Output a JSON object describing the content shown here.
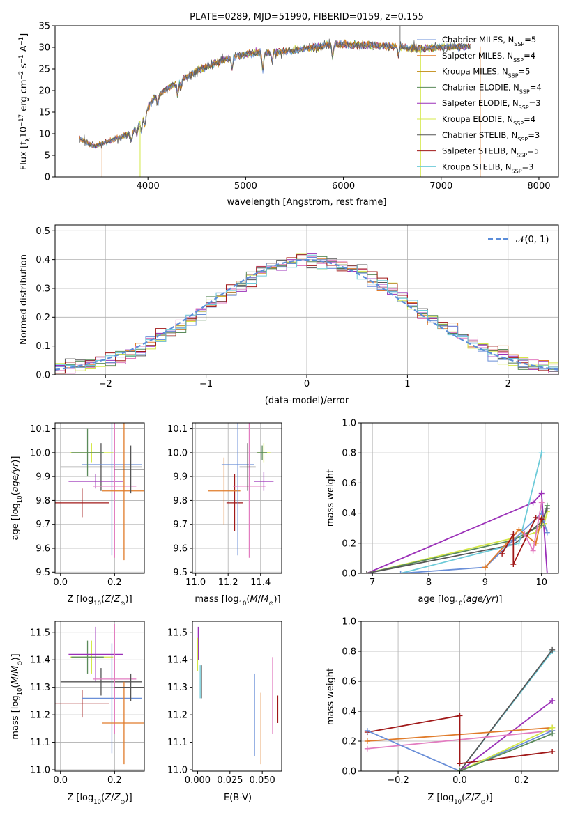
{
  "colors": {
    "chabrier_miles": "#6a8fd8",
    "salpeter_miles": "#e07b2a",
    "kroupa_miles": "#c08a10",
    "chabrier_elodie": "#5a8a5a",
    "salpeter_elodie": "#9b30b8",
    "kroupa_elodie": "#d4e84a",
    "chabrier_stelib": "#555555",
    "salpeter_stelib": "#a01818",
    "kroupa_stelib": "#6ccad8",
    "pink": "#e27cc0",
    "normal": "#5b8dd9"
  },
  "chart_data": [
    {
      "type": "line",
      "title": "PLATE=0289, MJD=51990, FIBERID=0159, z=0.155",
      "xlabel": "wavelength [Angstrom, rest frame]",
      "ylabel": "Flux [f_λ 10^-17 erg cm^-2 s^-1 A^-1]",
      "xlim": [
        3050,
        8200
      ],
      "ylim": [
        0,
        35
      ],
      "xticks": [
        "4000",
        "5000",
        "6000",
        "7000",
        "8000"
      ],
      "yticks": [
        "0",
        "5",
        "10",
        "15",
        "20",
        "25",
        "30",
        "35"
      ],
      "legend_position": "upper right",
      "continuum": [
        [
          3300,
          9.0
        ],
        [
          3450,
          7.0
        ],
        [
          3550,
          7.8
        ],
        [
          3700,
          9.0
        ],
        [
          3850,
          10.5
        ],
        [
          3950,
          14.0
        ],
        [
          4050,
          18.0
        ],
        [
          4200,
          20.5
        ],
        [
          4350,
          22.5
        ],
        [
          4500,
          24.5
        ],
        [
          4700,
          26.5
        ],
        [
          4900,
          28.0
        ],
        [
          5100,
          28.8
        ],
        [
          5300,
          28.8
        ],
        [
          5500,
          29.3
        ],
        [
          5700,
          30.0
        ],
        [
          5900,
          30.8
        ],
        [
          6100,
          30.5
        ],
        [
          6300,
          30.5
        ],
        [
          6500,
          30.2
        ],
        [
          6700,
          29.8
        ],
        [
          6850,
          29.8
        ],
        [
          7000,
          30.0
        ],
        [
          7200,
          30.2
        ],
        [
          7300,
          30.2
        ]
      ],
      "series": [
        {
          "label": "Chabrier MILES, N",
          "sub": "SSP",
          "suffix": "=5",
          "color_key": "chabrier_miles"
        },
        {
          "label": "Salpeter MILES, N",
          "sub": "SSP",
          "suffix": "=4",
          "color_key": "salpeter_miles"
        },
        {
          "label": "Kroupa MILES, N",
          "sub": "SSP",
          "suffix": "=5",
          "color_key": "kroupa_miles"
        },
        {
          "label": "Chabrier ELODIE, N",
          "sub": "SSP",
          "suffix": "=4",
          "color_key": "chabrier_elodie"
        },
        {
          "label": "Salpeter ELODIE, N",
          "sub": "SSP",
          "suffix": "=3",
          "color_key": "salpeter_elodie"
        },
        {
          "label": "Kroupa ELODIE, N",
          "sub": "SSP",
          "suffix": "=4",
          "color_key": "kroupa_elodie"
        },
        {
          "label": "Chabrier STELIB, N",
          "sub": "SSP",
          "suffix": "=3",
          "color_key": "chabrier_stelib"
        },
        {
          "label": "Salpeter STELIB, N",
          "sub": "SSP",
          "suffix": "=5",
          "color_key": "salpeter_stelib"
        },
        {
          "label": "Kroupa STELIB, N",
          "sub": "SSP",
          "suffix": "=3",
          "color_key": "kroupa_stelib"
        }
      ]
    },
    {
      "type": "bar",
      "xlabel": "(data-model)/error",
      "ylabel": "Normed distribution",
      "xlim": [
        -2.5,
        2.5
      ],
      "ylim": [
        0,
        0.52
      ],
      "xticks": [
        "−2",
        "−1",
        "0",
        "1",
        "2"
      ],
      "yticks": [
        "0.0",
        "0.1",
        "0.2",
        "0.3",
        "0.4",
        "0.5"
      ],
      "bin_width": 0.1,
      "legend": "𝒩(0, 1)",
      "legend_position": "upper right",
      "grid": true
    },
    {
      "type": "scatter",
      "xlabel": "Z [log10(Z/Z⊙)]",
      "ylabel": "age  [log10(age/yr)]",
      "xlim": [
        -0.02,
        0.31
      ],
      "ylim": [
        9.495,
        10.125
      ],
      "xticks": [
        "0.0",
        "0.2"
      ],
      "yticks": [
        "9.5",
        "9.6",
        "9.7",
        "9.8",
        "9.9",
        "10.0",
        "10.1"
      ],
      "grid": true,
      "points": [
        {
          "x": 0.08,
          "y": 9.79,
          "xerr": 0.1,
          "yerr": 0.06,
          "color_key": "salpeter_stelib"
        },
        {
          "x": 0.115,
          "y": 10.0,
          "xerr": 0.08,
          "yerr": 0.04,
          "color_key": "kroupa_elodie"
        },
        {
          "x": 0.15,
          "y": 9.94,
          "xerr": 0.15,
          "yerr": 0.1,
          "color_key": "chabrier_stelib"
        },
        {
          "x": 0.13,
          "y": 9.88,
          "xerr": 0.1,
          "yerr": 0.03,
          "color_key": "salpeter_elodie"
        },
        {
          "x": 0.19,
          "y": 9.95,
          "xerr": 0.11,
          "yerr": 0.38,
          "color_key": "chabrier_miles"
        },
        {
          "x": 0.2,
          "y": 9.86,
          "xerr": 0.08,
          "yerr": 0.3,
          "color_key": "pink"
        },
        {
          "x": 0.235,
          "y": 9.84,
          "xerr": 0.08,
          "yerr": 0.29,
          "color_key": "salpeter_miles"
        },
        {
          "x": 0.26,
          "y": 9.93,
          "xerr": 0.06,
          "yerr": 0.1,
          "color_key": "chabrier_stelib"
        },
        {
          "x": 0.1,
          "y": 10.0,
          "xerr": 0.06,
          "yerr": 0.1,
          "color_key": "chabrier_elodie"
        }
      ]
    },
    {
      "type": "scatter",
      "xlabel": "mass [log10(M/M⊙)]",
      "ylabel": "",
      "xlim": [
        10.98,
        11.53
      ],
      "ylim": [
        9.495,
        10.125
      ],
      "xticks": [
        "11.0",
        "11.2",
        "11.4"
      ],
      "yticks": [
        "9.5",
        "9.6",
        "9.7",
        "9.8",
        "9.9",
        "10.0",
        "10.1"
      ],
      "grid": true,
      "points": [
        {
          "x": 11.24,
          "y": 9.79,
          "xerr": 0.05,
          "yerr": 0.12,
          "color_key": "salpeter_stelib"
        },
        {
          "x": 11.175,
          "y": 9.84,
          "xerr": 0.1,
          "yerr": 0.14,
          "color_key": "salpeter_miles"
        },
        {
          "x": 11.26,
          "y": 9.95,
          "xerr": 0.1,
          "yerr": 0.38,
          "color_key": "chabrier_miles"
        },
        {
          "x": 11.33,
          "y": 9.86,
          "xerr": 0.1,
          "yerr": 0.3,
          "color_key": "pink"
        },
        {
          "x": 11.32,
          "y": 9.94,
          "xerr": 0.05,
          "yerr": 0.1,
          "color_key": "chabrier_stelib"
        },
        {
          "x": 11.42,
          "y": 10.0,
          "xerr": 0.04,
          "yerr": 0.04,
          "color_key": "kroupa_elodie"
        },
        {
          "x": 11.42,
          "y": 9.88,
          "xerr": 0.06,
          "yerr": 0.04,
          "color_key": "salpeter_elodie"
        },
        {
          "x": 11.41,
          "y": 10.0,
          "xerr": 0.03,
          "yerr": 0.03,
          "color_key": "chabrier_elodie"
        }
      ]
    },
    {
      "type": "line",
      "xlabel": "age  [log10(age/yr)]",
      "ylabel": "mass weight",
      "xlim": [
        6.8,
        10.3
      ],
      "ylim": [
        0,
        1
      ],
      "xticks": [
        "7",
        "8",
        "9",
        "10"
      ],
      "yticks": [
        "0.0",
        "0.2",
        "0.4",
        "0.6",
        "0.8",
        "1.0"
      ],
      "grid": true,
      "series": [
        {
          "color_key": "salpeter_elodie",
          "x": [
            6.9,
            9.85,
            10.0,
            10.1
          ],
          "y": [
            0.0,
            0.47,
            0.53,
            0.0
          ]
        },
        {
          "color_key": "kroupa_elodie",
          "x": [
            6.9,
            9.9,
            10.05,
            10.1
          ],
          "y": [
            0.0,
            0.27,
            0.33,
            0.41
          ]
        },
        {
          "color_key": "chabrier_elodie",
          "x": [
            6.9,
            9.5,
            10.0,
            10.1
          ],
          "y": [
            0.0,
            0.22,
            0.32,
            0.45
          ]
        },
        {
          "color_key": "chabrier_stelib",
          "x": [
            6.9,
            9.5,
            10.0,
            10.1
          ],
          "y": [
            0.0,
            0.19,
            0.34,
            0.43
          ]
        },
        {
          "color_key": "kroupa_stelib",
          "x": [
            7.5,
            9.6,
            10.0
          ],
          "y": [
            0.0,
            0.2,
            0.8
          ]
        },
        {
          "color_key": "chabrier_miles",
          "x": [
            7.5,
            9.0,
            9.5,
            10.0,
            10.1
          ],
          "y": [
            0.0,
            0.04,
            0.22,
            0.4,
            0.27
          ]
        },
        {
          "color_key": "salpeter_miles",
          "x": [
            9.0,
            9.6,
            9.9,
            10.0
          ],
          "y": [
            0.04,
            0.29,
            0.2,
            0.37
          ]
        },
        {
          "color_key": "salpeter_stelib",
          "x": [
            9.3,
            9.5,
            9.5,
            9.9,
            10.0
          ],
          "y": [
            0.13,
            0.26,
            0.06,
            0.37,
            0.36
          ]
        },
        {
          "color_key": "pink",
          "x": [
            9.7,
            9.85,
            10.0
          ],
          "y": [
            0.26,
            0.15,
            0.47
          ]
        }
      ]
    },
    {
      "type": "scatter",
      "xlabel": "Z [log10(Z/Z⊙)]",
      "ylabel": "mass [log10(M/M⊙)]",
      "xlim": [
        -0.02,
        0.31
      ],
      "ylim": [
        10.995,
        11.54
      ],
      "xticks": [
        "0.0",
        "0.2"
      ],
      "yticks": [
        "11.0",
        "11.1",
        "11.2",
        "11.3",
        "11.4",
        "11.5"
      ],
      "grid": true,
      "points": [
        {
          "x": 0.08,
          "y": 11.24,
          "xerr": 0.1,
          "yerr": 0.05,
          "color_key": "salpeter_stelib"
        },
        {
          "x": 0.115,
          "y": 11.41,
          "xerr": 0.08,
          "yerr": 0.06,
          "color_key": "kroupa_elodie"
        },
        {
          "x": 0.1,
          "y": 11.41,
          "xerr": 0.06,
          "yerr": 0.06,
          "color_key": "chabrier_elodie"
        },
        {
          "x": 0.13,
          "y": 11.42,
          "xerr": 0.1,
          "yerr": 0.1,
          "color_key": "salpeter_elodie"
        },
        {
          "x": 0.15,
          "y": 11.32,
          "xerr": 0.15,
          "yerr": 0.05,
          "color_key": "chabrier_stelib"
        },
        {
          "x": 0.19,
          "y": 11.26,
          "xerr": 0.11,
          "yerr": 0.2,
          "color_key": "chabrier_miles"
        },
        {
          "x": 0.2,
          "y": 11.33,
          "xerr": 0.08,
          "yerr": 0.2,
          "color_key": "pink"
        },
        {
          "x": 0.235,
          "y": 11.17,
          "xerr": 0.08,
          "yerr": 0.15,
          "color_key": "salpeter_miles"
        },
        {
          "x": 0.26,
          "y": 11.3,
          "xerr": 0.06,
          "yerr": 0.05,
          "color_key": "chabrier_stelib"
        }
      ]
    },
    {
      "type": "scatter",
      "xlabel": "E(B-V)",
      "ylabel": "",
      "xlim": [
        -0.004,
        0.065
      ],
      "ylim": [
        10.995,
        11.54
      ],
      "xticks": [
        "0.000",
        "0.025",
        "0.050"
      ],
      "yticks": [
        "11.0",
        "11.1",
        "11.2",
        "11.3",
        "11.4",
        "11.5"
      ],
      "grid": false,
      "points": [
        {
          "x": 0.0005,
          "y": 11.46,
          "xerr": 0,
          "yerr": 0.06,
          "color_key": "salpeter_elodie"
        },
        {
          "x": 0.0,
          "y": 11.42,
          "xerr": 0,
          "yerr": 0.06,
          "color_key": "kroupa_elodie"
        },
        {
          "x": 0.002,
          "y": 11.32,
          "xerr": 0,
          "yerr": 0.06,
          "color_key": "kroupa_stelib"
        },
        {
          "x": 0.003,
          "y": 11.32,
          "xerr": 0,
          "yerr": 0.06,
          "color_key": "chabrier_stelib"
        },
        {
          "x": 0.044,
          "y": 11.2,
          "xerr": 0,
          "yerr": 0.15,
          "color_key": "chabrier_miles"
        },
        {
          "x": 0.049,
          "y": 11.15,
          "xerr": 0,
          "yerr": 0.13,
          "color_key": "salpeter_miles"
        },
        {
          "x": 0.058,
          "y": 11.27,
          "xerr": 0,
          "yerr": 0.14,
          "color_key": "pink"
        },
        {
          "x": 0.062,
          "y": 11.22,
          "xerr": 0,
          "yerr": 0.05,
          "color_key": "salpeter_stelib"
        }
      ]
    },
    {
      "type": "line",
      "xlabel": "Z [log10(Z/Z⊙)]",
      "ylabel": "mass weight",
      "xlim": [
        -0.32,
        0.32
      ],
      "ylim": [
        0,
        1
      ],
      "xticks": [
        "−0.2",
        "0.0",
        "0.2"
      ],
      "yticks": [
        "0.0",
        "0.2",
        "0.4",
        "0.6",
        "0.8",
        "1.0"
      ],
      "grid": true,
      "series": [
        {
          "color_key": "kroupa_stelib",
          "x": [
            0.0,
            0.3
          ],
          "y": [
            0.0,
            0.8
          ]
        },
        {
          "color_key": "chabrier_stelib",
          "x": [
            0.0,
            0.3
          ],
          "y": [
            0.0,
            0.81
          ]
        },
        {
          "color_key": "salpeter_elodie",
          "x": [
            0.0,
            0.3
          ],
          "y": [
            0.0,
            0.47
          ]
        },
        {
          "color_key": "salpeter_miles",
          "x": [
            -0.3,
            0.3
          ],
          "y": [
            0.2,
            0.29
          ]
        },
        {
          "color_key": "pink",
          "x": [
            -0.3,
            0.3
          ],
          "y": [
            0.15,
            0.27
          ]
        },
        {
          "color_key": "salpeter_stelib",
          "x": [
            -0.3,
            0.0,
            0.0,
            0.3
          ],
          "y": [
            0.26,
            0.37,
            0.05,
            0.13
          ]
        },
        {
          "color_key": "chabrier_miles",
          "x": [
            -0.3,
            0.0,
            0.3
          ],
          "y": [
            0.27,
            0.0,
            0.27
          ]
        },
        {
          "color_key": "kroupa_elodie",
          "x": [
            0.0,
            0.3
          ],
          "y": [
            0.0,
            0.29
          ]
        },
        {
          "color_key": "chabrier_elodie",
          "x": [
            0.0,
            0.3
          ],
          "y": [
            0.0,
            0.25
          ]
        }
      ]
    }
  ]
}
